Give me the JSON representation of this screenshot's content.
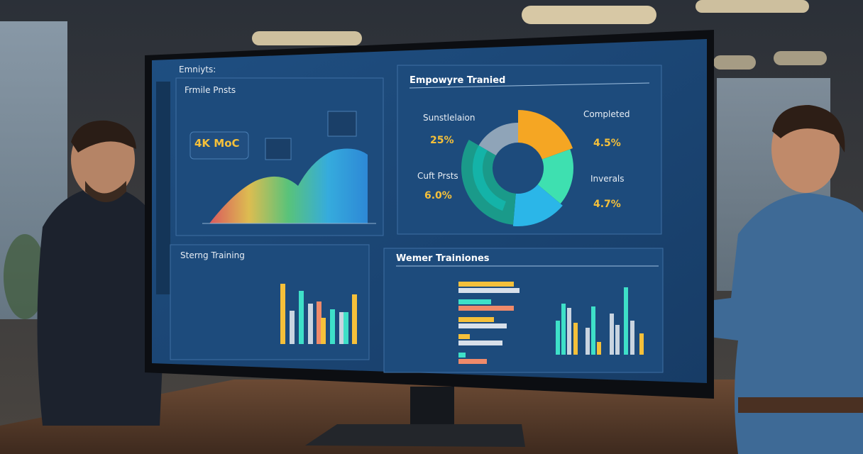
{
  "screen": {
    "app_title": "Emniyts:",
    "panel_1": {
      "title": "Frmile Pnsts",
      "badge": "4K MoC"
    },
    "panel_2": {
      "title": "Empowyre Tranied",
      "labels": [
        {
          "name": "Sunstlelaion",
          "value": "25%"
        },
        {
          "name": "Completed",
          "value": "4.5%"
        },
        {
          "name": "Cuft Prsts",
          "value": "6.0%"
        },
        {
          "name": "Inverals",
          "value": "4.7%"
        }
      ]
    },
    "panel_3": {
      "title": "Sterng Training"
    },
    "panel_4": {
      "title": "Wemer Trainiones"
    }
  }
}
